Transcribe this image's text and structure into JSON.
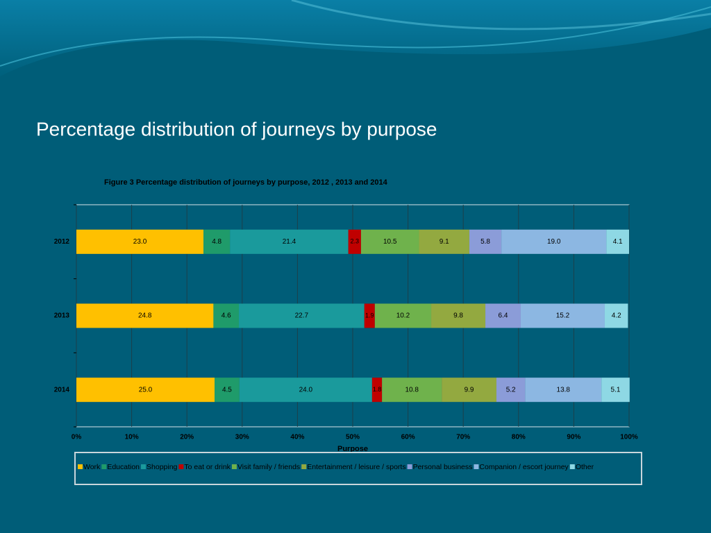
{
  "slide_title": "Percentage distribution of journeys by purpose",
  "chart_data": {
    "type": "stacked-bar-horizontal",
    "title": "Figure 3 Percentage distribution of journeys by purpose, 2012 , 2013 and 2014",
    "xlabel": "Purpose",
    "categories": [
      "2012",
      "2013",
      "2014"
    ],
    "series": [
      {
        "name": "Work",
        "color": "#ffc000",
        "values": [
          23.0,
          24.8,
          25.0
        ],
        "value_labels": [
          "23.0",
          "24.8",
          "25.0"
        ]
      },
      {
        "name": "Education",
        "color": "#1f9b6a",
        "values": [
          4.8,
          4.6,
          4.5
        ],
        "value_labels": [
          "4.8",
          "4.6",
          "4.5"
        ]
      },
      {
        "name": "Shopping",
        "color": "#1a9a9c",
        "values": [
          21.4,
          22.7,
          24.0
        ],
        "value_labels": [
          "21.4",
          "22.7",
          "24.0"
        ]
      },
      {
        "name": "To eat or drink",
        "color": "#c00000",
        "values": [
          2.3,
          1.9,
          1.8
        ],
        "value_labels": [
          "2.3",
          "1.9",
          "1.8"
        ]
      },
      {
        "name": "Visit family / friends",
        "color": "#6fb24c",
        "values": [
          10.5,
          10.2,
          10.8
        ],
        "value_labels": [
          "10.5",
          "10.2",
          "10.8"
        ]
      },
      {
        "name": "Entertainment / leisure / sports",
        "color": "#93a940",
        "values": [
          9.1,
          9.8,
          9.9
        ],
        "value_labels": [
          "9.1",
          "9.8",
          "9.9"
        ]
      },
      {
        "name": "Personal business",
        "color": "#8b9cd8",
        "values": [
          5.8,
          6.4,
          5.2
        ],
        "value_labels": [
          "5.8",
          "6.4",
          "5.2"
        ]
      },
      {
        "name": "Companion / escort journey",
        "color": "#8cb7e2",
        "values": [
          19.0,
          15.2,
          13.8
        ],
        "value_labels": [
          "19.0",
          "15.2",
          "13.8"
        ]
      },
      {
        "name": "Other",
        "color": "#8ed8e4",
        "values": [
          4.1,
          4.2,
          5.1
        ],
        "value_labels": [
          "4.1",
          "4.2",
          "5.1"
        ]
      }
    ],
    "xlim": [
      0,
      100
    ],
    "xticks": [
      {
        "value": 0,
        "label": "0%"
      },
      {
        "value": 10,
        "label": "10%"
      },
      {
        "value": 20,
        "label": "20%"
      },
      {
        "value": 30,
        "label": "30%"
      },
      {
        "value": 40,
        "label": "40%"
      },
      {
        "value": 50,
        "label": "50%"
      },
      {
        "value": 60,
        "label": "60%"
      },
      {
        "value": 70,
        "label": "70%"
      },
      {
        "value": 80,
        "label": "80%"
      },
      {
        "value": 90,
        "label": "90%"
      },
      {
        "value": 100,
        "label": "100%"
      }
    ],
    "grid": true,
    "legend": "bottom"
  }
}
